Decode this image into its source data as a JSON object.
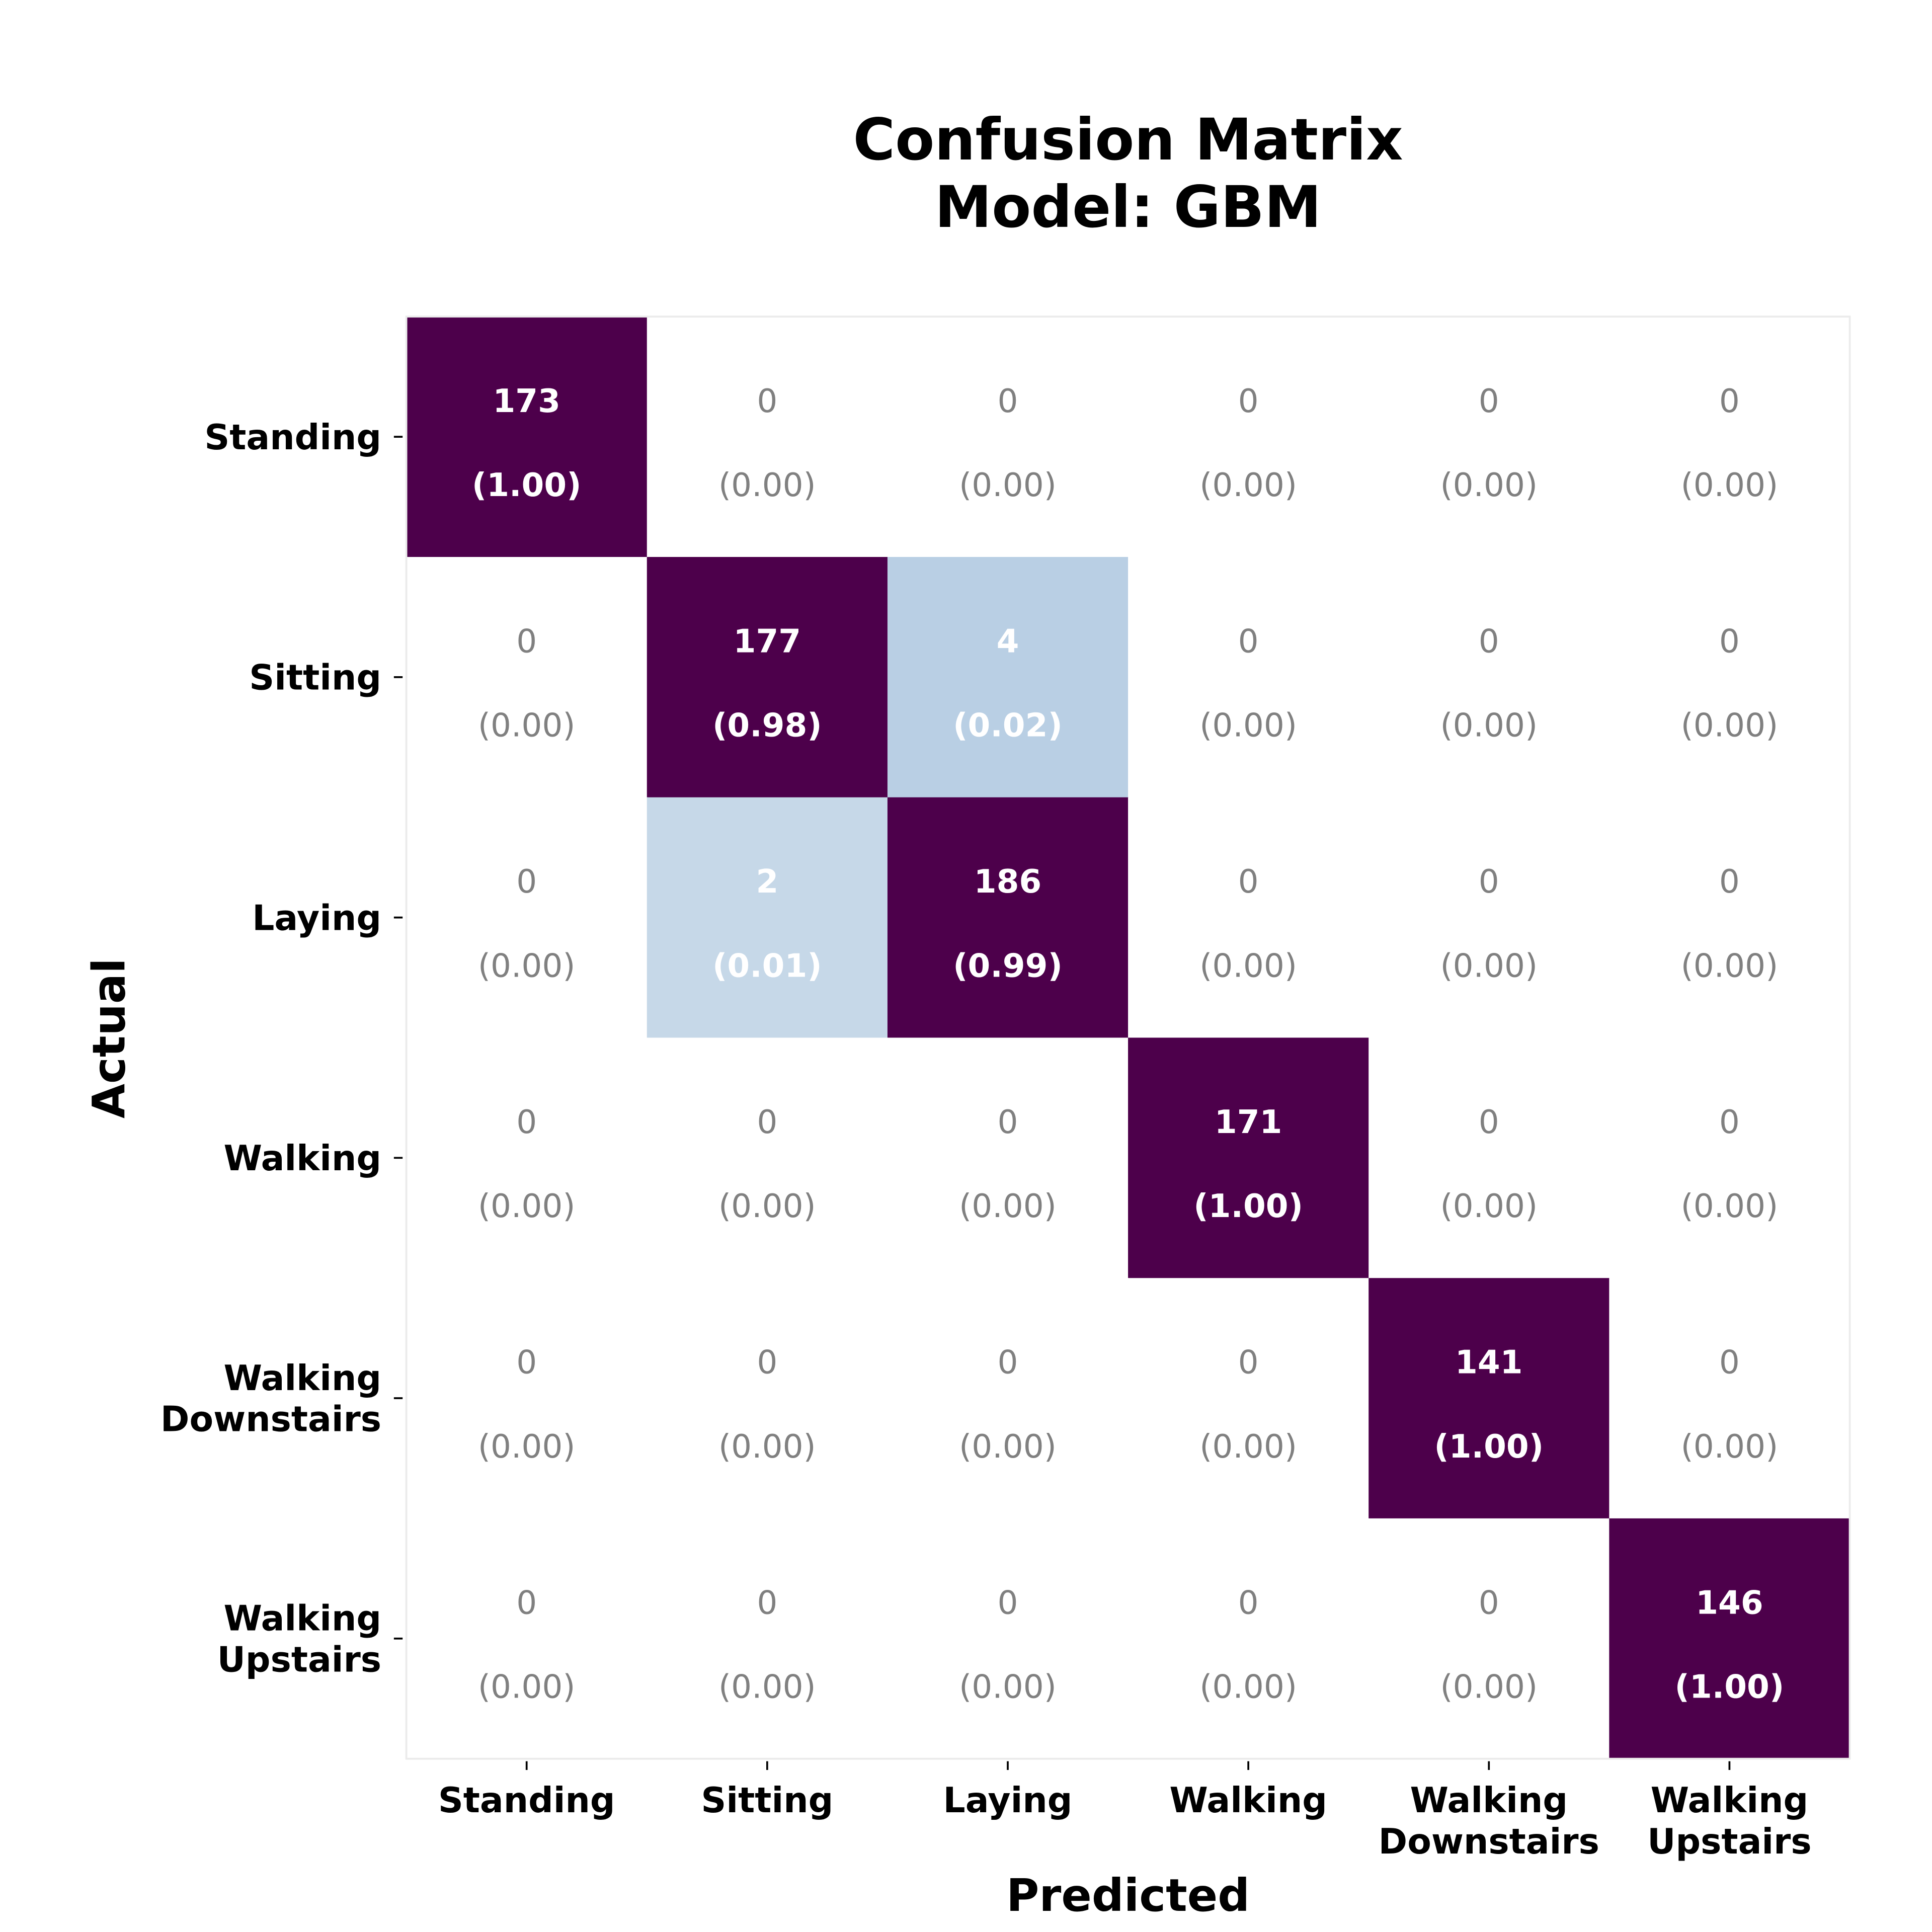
{
  "chart_data": {
    "type": "heatmap",
    "title": "Confusion Matrix",
    "subtitle": "Model: GBM",
    "xlabel": "Predicted",
    "ylabel": "Actual",
    "colormap": "BuPu",
    "grid": false,
    "legend": "none",
    "x_categories": [
      [
        "Standing"
      ],
      [
        "Sitting"
      ],
      [
        "Laying"
      ],
      [
        "Walking"
      ],
      [
        "Walking",
        "Downstairs"
      ],
      [
        "Walking",
        "Upstairs"
      ]
    ],
    "y_categories": [
      [
        "Standing"
      ],
      [
        "Sitting"
      ],
      [
        "Laying"
      ],
      [
        "Walking"
      ],
      [
        "Walking",
        "Downstairs"
      ],
      [
        "Walking",
        "Upstairs"
      ]
    ],
    "counts": [
      [
        173,
        0,
        0,
        0,
        0,
        0
      ],
      [
        0,
        177,
        4,
        0,
        0,
        0
      ],
      [
        0,
        2,
        186,
        0,
        0,
        0
      ],
      [
        0,
        0,
        0,
        171,
        0,
        0
      ],
      [
        0,
        0,
        0,
        0,
        141,
        0
      ],
      [
        0,
        0,
        0,
        0,
        0,
        146
      ]
    ],
    "proportions": [
      [
        "1.00",
        "0.00",
        "0.00",
        "0.00",
        "0.00",
        "0.00"
      ],
      [
        "0.00",
        "0.98",
        "0.02",
        "0.00",
        "0.00",
        "0.00"
      ],
      [
        "0.00",
        "0.01",
        "0.99",
        "0.00",
        "0.00",
        "0.00"
      ],
      [
        "0.00",
        "0.00",
        "0.00",
        "1.00",
        "0.00",
        "0.00"
      ],
      [
        "0.00",
        "0.00",
        "0.00",
        "0.00",
        "1.00",
        "0.00"
      ],
      [
        "0.00",
        "0.00",
        "0.00",
        "0.00",
        "0.00",
        "1.00"
      ]
    ],
    "colors": {
      "max": "#4d004b",
      "zero": "#ffffff",
      "zero_text": "#808080",
      "nonzero_text": "#ffffff",
      "frame": "#ebebeb"
    },
    "cell_colors": [
      [
        "#4d004b",
        "#ffffff",
        "#ffffff",
        "#ffffff",
        "#ffffff",
        "#ffffff"
      ],
      [
        "#ffffff",
        "#4d004b",
        "#b9cfe4",
        "#ffffff",
        "#ffffff",
        "#ffffff"
      ],
      [
        "#ffffff",
        "#c6d8e8",
        "#4d004b",
        "#ffffff",
        "#ffffff",
        "#ffffff"
      ],
      [
        "#ffffff",
        "#ffffff",
        "#ffffff",
        "#4d004b",
        "#ffffff",
        "#ffffff"
      ],
      [
        "#ffffff",
        "#ffffff",
        "#ffffff",
        "#ffffff",
        "#4d004b",
        "#ffffff"
      ],
      [
        "#ffffff",
        "#ffffff",
        "#ffffff",
        "#ffffff",
        "#ffffff",
        "#4d004b"
      ]
    ]
  }
}
